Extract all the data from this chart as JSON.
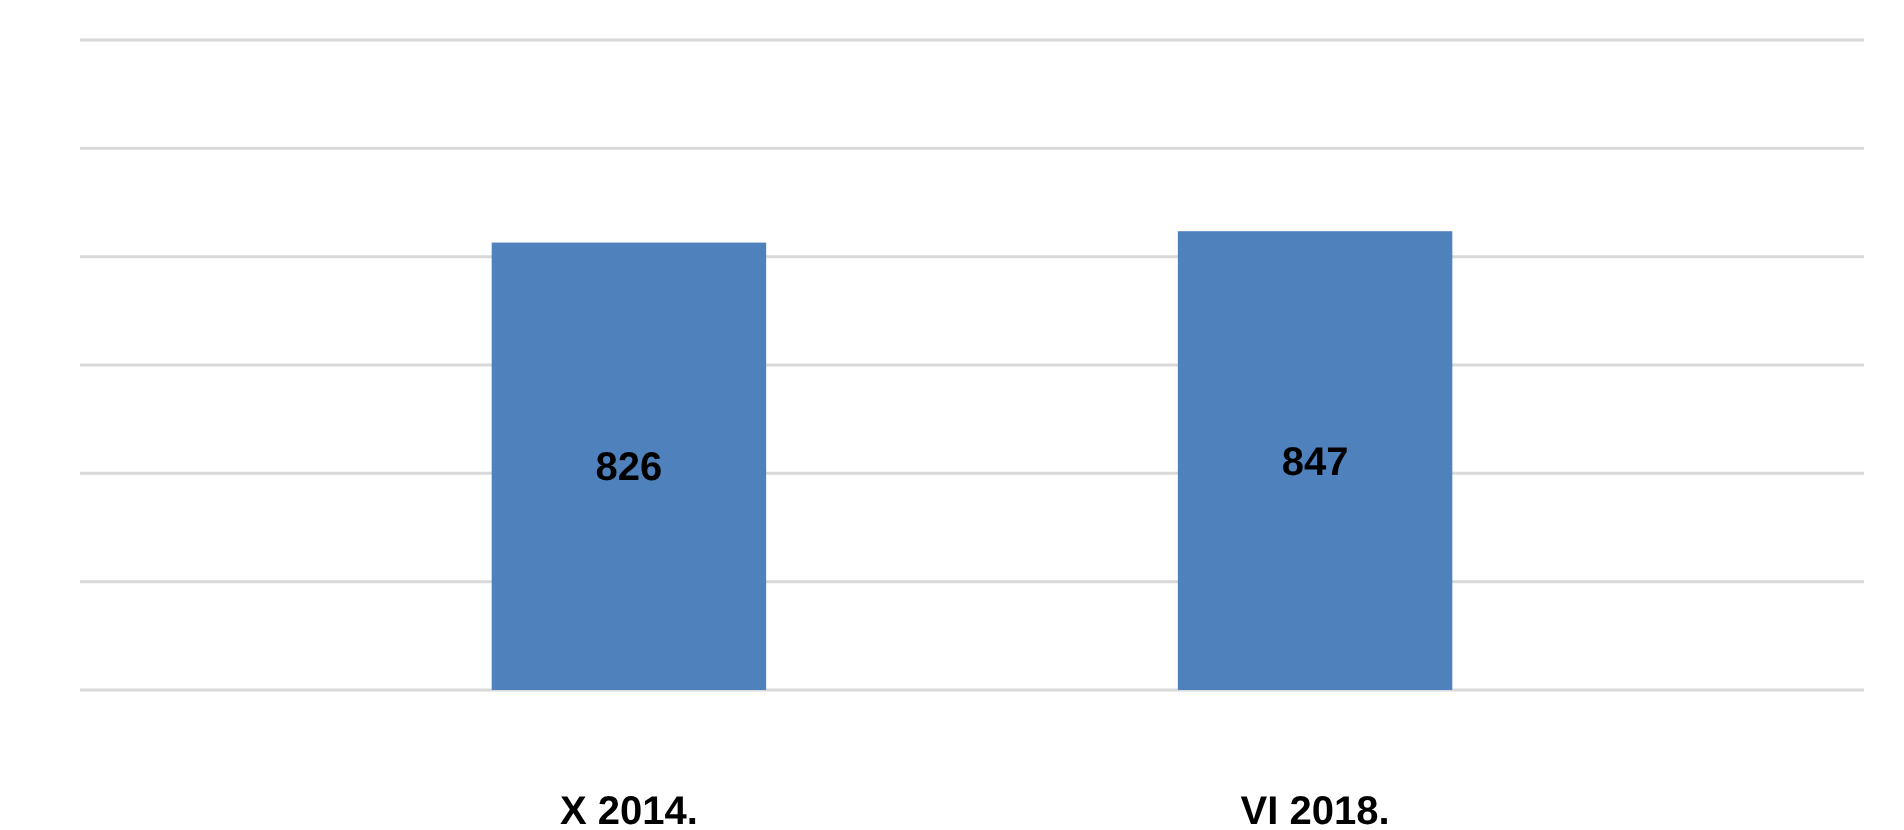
{
  "chart_data": {
    "type": "bar",
    "categories": [
      "X 2014.",
      "VI 2018."
    ],
    "values": [
      826,
      847
    ],
    "color": "#4f81bd",
    "data_labels": true,
    "ylim": [
      0,
      1200
    ],
    "yticks": [
      {
        "value": 0,
        "label": null
      },
      {
        "value": 200,
        "label": null
      },
      {
        "value": 400,
        "label": null
      },
      {
        "value": 600,
        "label": null
      },
      {
        "value": 800,
        "label": null
      },
      {
        "value": 1000,
        "label": null
      },
      {
        "value": 1200,
        "label": null
      }
    ],
    "grid": true,
    "tick_labels": "x"
  }
}
